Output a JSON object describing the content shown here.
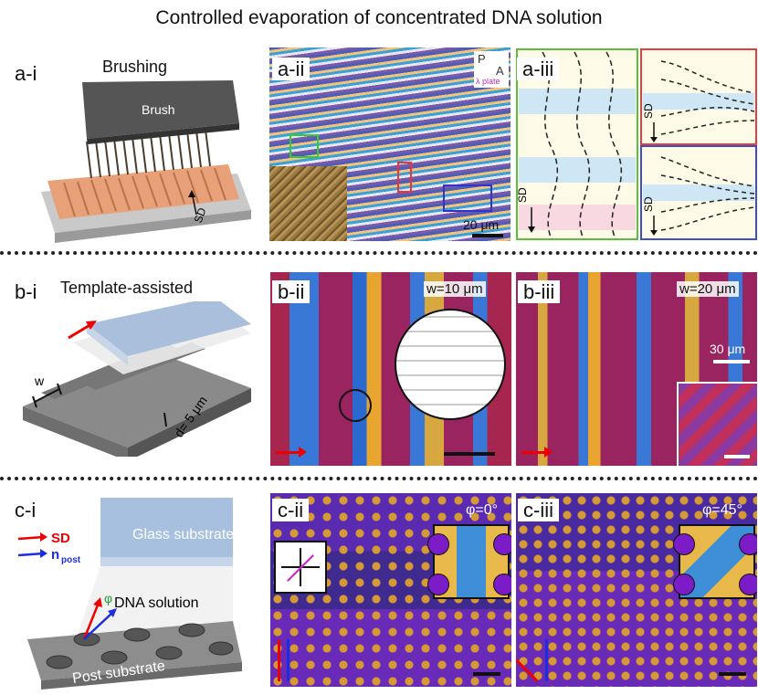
{
  "title": "Controlled evaporation of concentrated DNA solution",
  "panels": {
    "a_i": {
      "label": "a-i",
      "heading": "Brushing",
      "brush": "Brush",
      "sd": "SD"
    },
    "a_ii": {
      "label": "a-ii",
      "polarizer_p": "P",
      "polarizer_a": "A",
      "plate": "λ plate",
      "scale": "20 μm"
    },
    "a_iii": {
      "label": "a-iii",
      "sd": "SD"
    },
    "b_i": {
      "label": "b-i",
      "heading": "Template-assisted",
      "w": "w",
      "depth": "d= 5 μm"
    },
    "b_ii": {
      "label": "b-ii",
      "width": "w=10 μm"
    },
    "b_iii": {
      "label": "b-iii",
      "width": "w=20 μm",
      "scale": "30 μm"
    },
    "c_i": {
      "label": "c-i",
      "glass": "Glass substrate",
      "dna": "DNA solution",
      "post": "Post substrate",
      "sd": "SD",
      "npost": "n",
      "npost_sub": "post",
      "phi": "φ"
    },
    "c_ii": {
      "label": "c-ii",
      "angle": "φ=0°"
    },
    "c_iii": {
      "label": "c-iii",
      "angle": "φ=45°"
    }
  },
  "colors": {
    "red": "#e00000",
    "blue": "#1a2ee0",
    "magenta": "#d21fd2",
    "purple": "#7c1cc8"
  }
}
